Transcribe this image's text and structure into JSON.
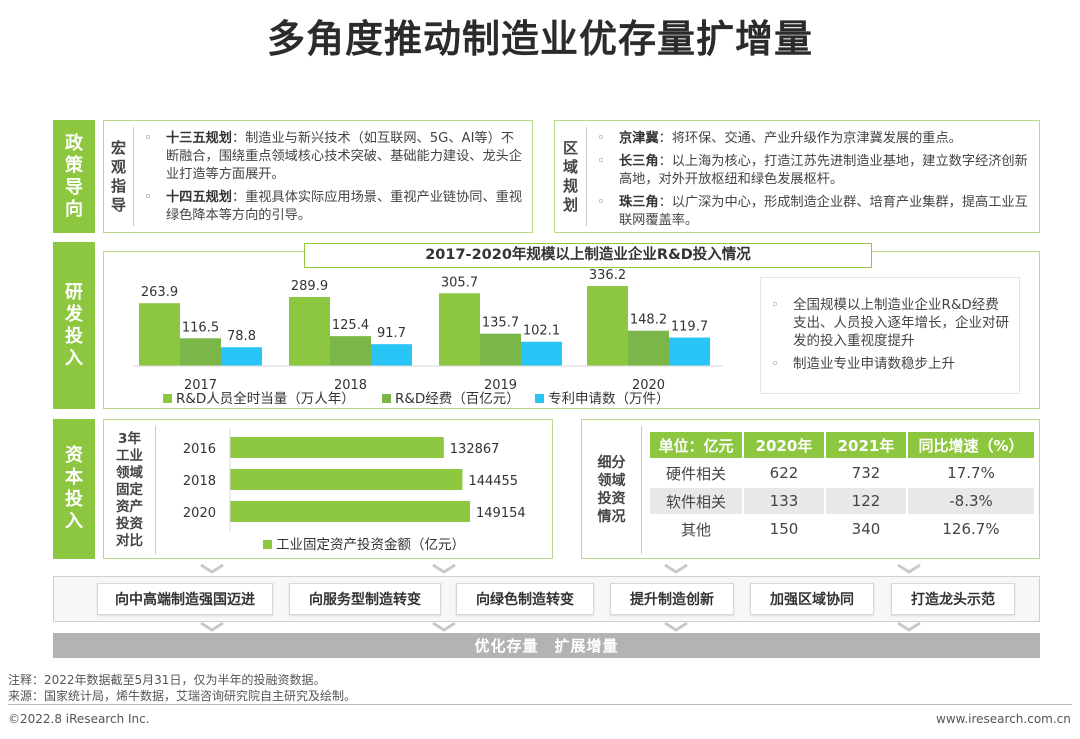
{
  "title": "多角度推动制造业优存量扩增量",
  "policy": {
    "tab": "政策导向",
    "macro": {
      "label": "宏观指导",
      "items": [
        {
          "head": "十三五规划",
          "text": "：制造业与新兴技术（如互联网、5G、AI等）不断融合，围绕重点领域核心技术突破、基础能力建设、龙头企业打造等方面展开。"
        },
        {
          "head": "十四五规划",
          "text": "：重视具体实际应用场景、重视产业链协同、重视绿色降本等方向的引导。"
        }
      ]
    },
    "regional": {
      "label": "区域规划",
      "items": [
        {
          "head": "京津冀",
          "text": "：将环保、交通、产业升级作为京津冀发展的重点。"
        },
        {
          "head": "长三角",
          "text": "：以上海为核心，打造江苏先进制造业基地，建立数字经济创新高地，对外开放枢纽和绿色发展枢杆。"
        },
        {
          "head": "珠三角",
          "text": "：以广深为中心，形成制造企业群、培育产业集群，提高工业互联网覆盖率。"
        }
      ]
    }
  },
  "rd": {
    "tab": "研发投入",
    "notes": [
      "全国规模以上制造业企业R&D经费支出、人员投入逐年增长，企业对研发的投入重视度提升",
      "制造业专业申请数稳步上升"
    ]
  },
  "capital": {
    "tab": "资本投入",
    "chart_label": "3年工业领域固定资产投资对比",
    "table": {
      "label": "细分领域投资情况",
      "headers": [
        "单位：亿元",
        "2020年",
        "2021年",
        "同比增速（%）"
      ],
      "rows": [
        [
          "硬件相关",
          "622",
          "732",
          "17.7%"
        ],
        [
          "软件相关",
          "133",
          "122",
          "-8.3%"
        ],
        [
          "其他",
          "150",
          "340",
          "126.7%"
        ]
      ]
    }
  },
  "directions": [
    "向中高端制造强国迈进",
    "向服务型制造转变",
    "向绿色制造转变",
    "提升制造创新",
    "加强区域协同",
    "打造龙头示范"
  ],
  "bottom_bar": "优化存量　扩展增量",
  "footer": {
    "note": "注释：2022年数据截至5月31日，仅为半年的投融资数据。",
    "source": "来源：国家统计局，烯牛数据，艾瑞咨询研究院自主研究及绘制。",
    "copyright": "©2022.8 iResearch Inc.",
    "website": "www.iresearch.com.cn"
  },
  "chart_data": [
    {
      "type": "bar",
      "title": "2017-2020年规模以上制造业企业R&D投入情况",
      "categories": [
        "2017",
        "2018",
        "2019",
        "2020"
      ],
      "series": [
        {
          "name": "R&D人员全时当量（万人年）",
          "color": "#8dc63f",
          "values": [
            263.9,
            289.9,
            305.7,
            336.2
          ]
        },
        {
          "name": "R&D经费（百亿元）",
          "color": "#7ab648",
          "values": [
            116.5,
            125.4,
            135.7,
            148.2
          ]
        },
        {
          "name": "专利申请数（万件）",
          "color": "#29c5f6",
          "values": [
            78.8,
            91.7,
            102.1,
            119.7
          ]
        }
      ],
      "ylim": [
        0,
        350
      ]
    },
    {
      "type": "bar",
      "orientation": "horizontal",
      "title": "3年工业领域固定资产投资对比",
      "categories": [
        "2016",
        "2018",
        "2020"
      ],
      "series": [
        {
          "name": "工业固定资产投资金额（亿元）",
          "color": "#8dc63f",
          "values": [
            132867,
            144455,
            149154
          ]
        }
      ],
      "xlim": [
        0,
        149154
      ]
    }
  ]
}
